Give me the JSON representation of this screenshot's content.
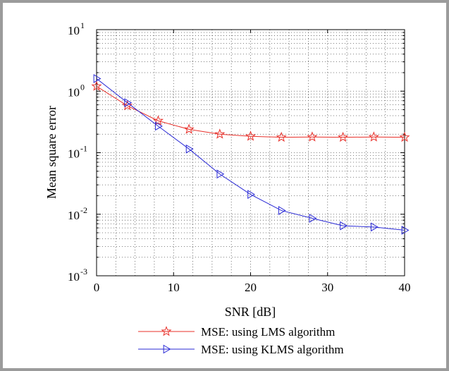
{
  "chart_data": {
    "type": "line",
    "title": "",
    "xlabel": "SNR [dB]",
    "ylabel": "Mean square error",
    "yscale": "log",
    "xlim": [
      0,
      40
    ],
    "ylim": [
      0.001,
      10
    ],
    "grid": true,
    "legend_position": "bottom-center",
    "x_ticks": [
      "0",
      "10",
      "20",
      "30",
      "40"
    ],
    "y_ticks": [
      {
        "base": "10",
        "exp": "1"
      },
      {
        "base": "10",
        "exp": "0"
      },
      {
        "base": "10",
        "exp": "-1"
      },
      {
        "base": "10",
        "exp": "-2"
      },
      {
        "base": "10",
        "exp": "-3"
      }
    ],
    "x": [
      0,
      4,
      8,
      12,
      16,
      20,
      24,
      28,
      32,
      36,
      40
    ],
    "series": [
      {
        "name": "MSE: using LMS algorithm",
        "color": "#e8302a",
        "marker": "star",
        "values": [
          1.2,
          0.58,
          0.33,
          0.24,
          0.2,
          0.185,
          0.178,
          0.18,
          0.178,
          0.18,
          0.178
        ]
      },
      {
        "name": "MSE: using KLMS algorithm",
        "color": "#2a2ad6",
        "marker": "triangle-right",
        "values": [
          1.6,
          0.65,
          0.27,
          0.115,
          0.045,
          0.021,
          0.0115,
          0.0086,
          0.0065,
          0.0062,
          0.0055
        ]
      }
    ]
  }
}
